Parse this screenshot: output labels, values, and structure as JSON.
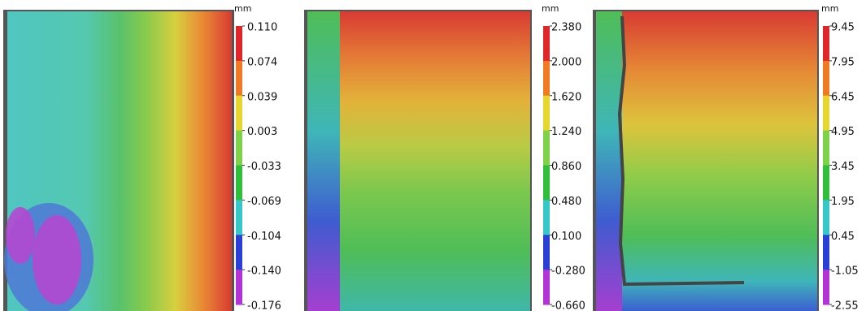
{
  "panels": [
    {
      "unit": "mm",
      "ticks": [
        "0.110",
        "0.074",
        "0.039",
        "0.003",
        "-0.033",
        "-0.069",
        "-0.104",
        "-0.140",
        "-0.176"
      ]
    },
    {
      "unit": "mm",
      "ticks": [
        "2.380",
        "2.000",
        "1.620",
        "1.240",
        "0.860",
        "0.480",
        "0.100",
        "-0.280",
        "-0.660"
      ]
    },
    {
      "unit": "mm",
      "ticks": [
        "9.45",
        "7.95",
        "6.45",
        "4.95",
        "3.45",
        "1.95",
        "0.45",
        "-1.05",
        "-2.55"
      ]
    }
  ]
}
